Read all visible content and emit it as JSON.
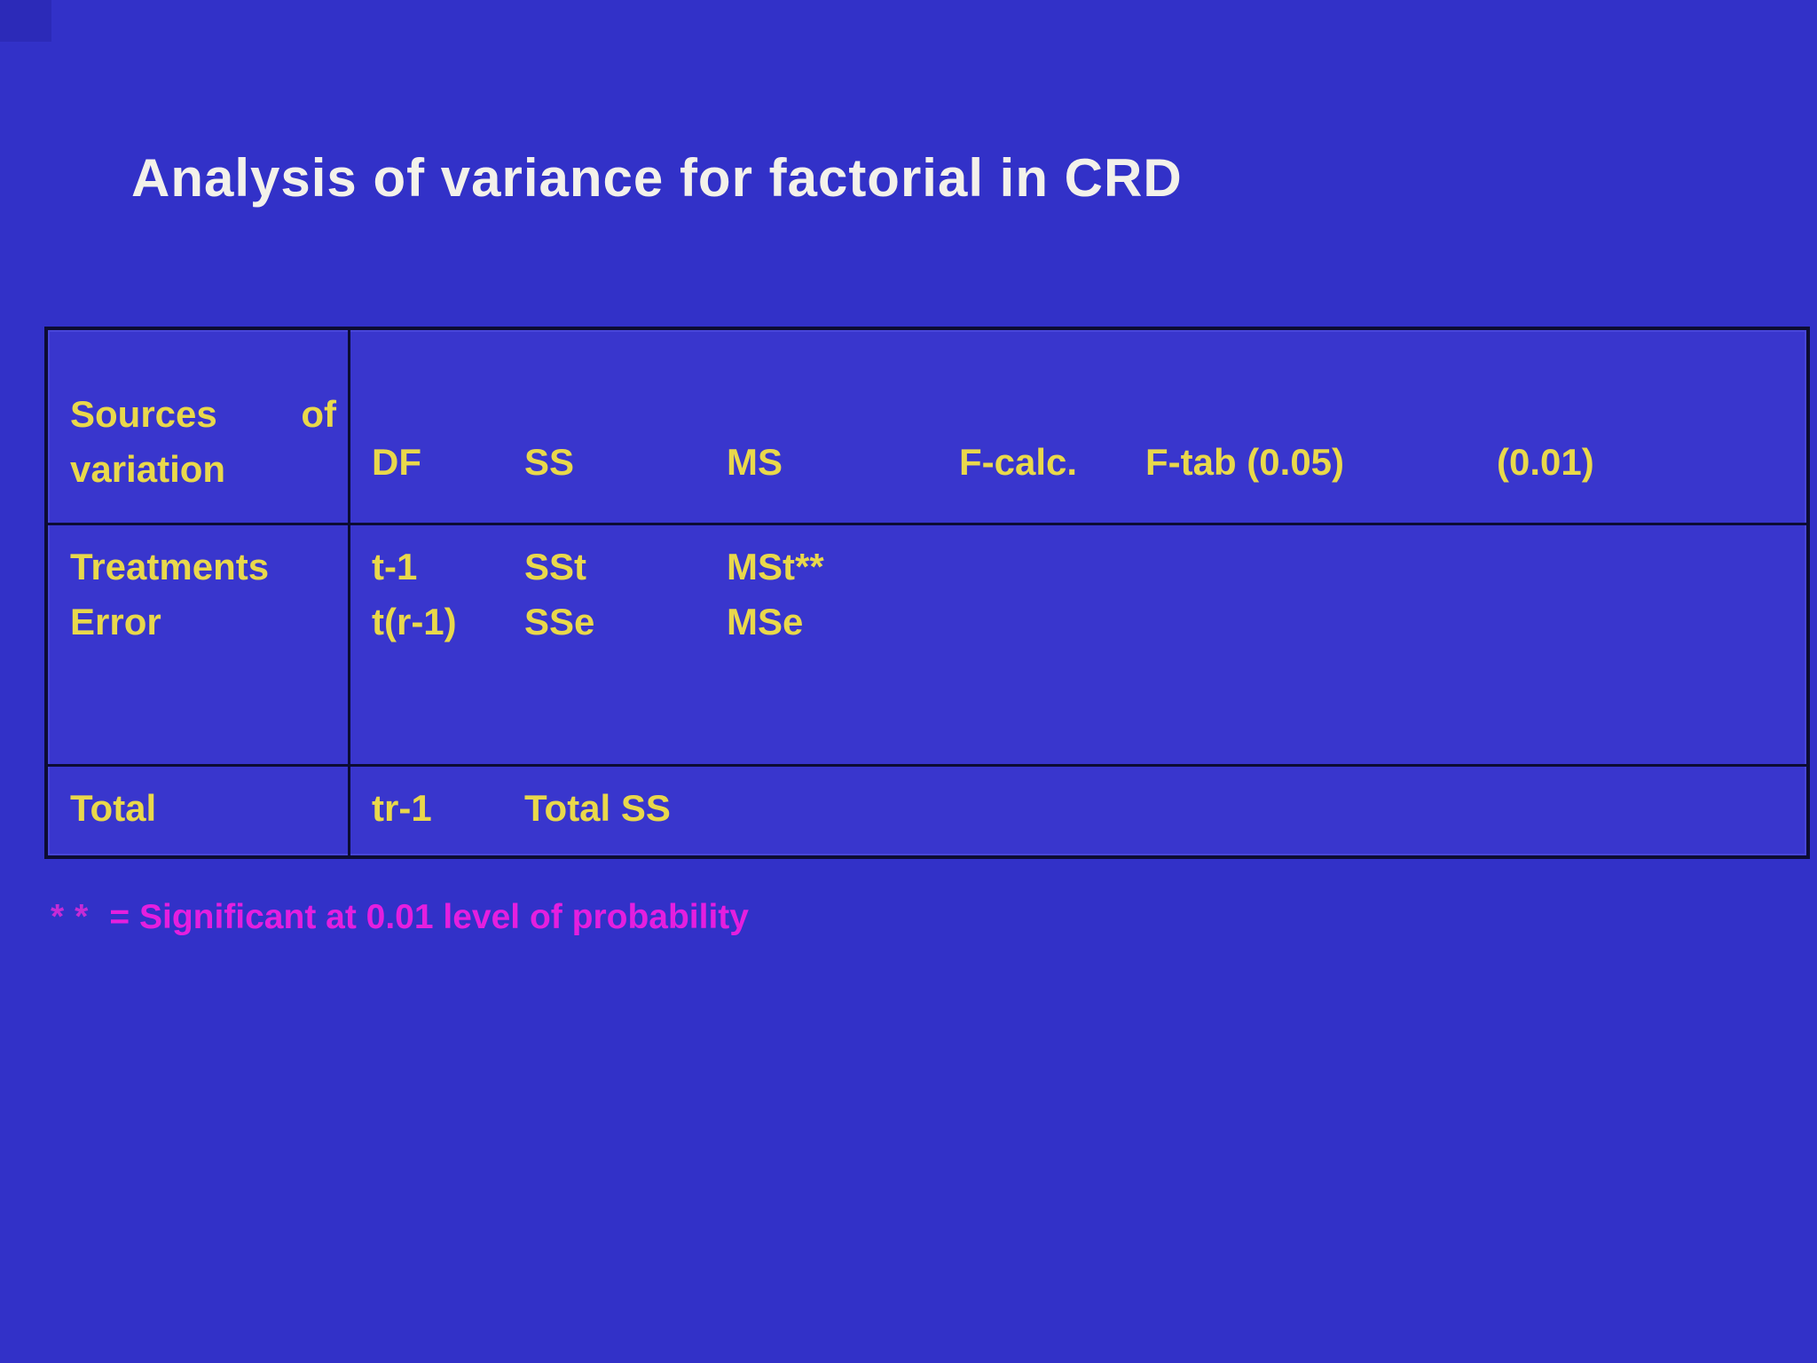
{
  "slide": {
    "title": "Analysis of variance for factorial in CRD"
  },
  "table": {
    "header": {
      "source_line1_left": "Sources",
      "source_line1_right": "of",
      "source_line2": "variation",
      "cols": [
        "DF",
        "SS",
        "MS",
        "F-calc.",
        "F-tab (0.05)",
        "(0.01)"
      ]
    },
    "rows": [
      {
        "source": "Treatments",
        "df": "t-1",
        "ss": "SSt",
        "ms": "MSt**"
      },
      {
        "source": "Error",
        "df": "t(r-1)",
        "ss": "SSe",
        "ms": "MSe"
      }
    ],
    "total": {
      "source": "Total",
      "df": "tr-1",
      "ss": "Total SS"
    }
  },
  "footnote": {
    "marker": "**",
    "text": "= Significant at 0.01 level of probability"
  },
  "colors": {
    "background": "#3231c8",
    "cell_fill": "#3936cd",
    "border": "#0c0c33",
    "title_text": "#f3f1ea",
    "table_text": "#e9d84b",
    "footnote_text": "#e41fdf"
  }
}
